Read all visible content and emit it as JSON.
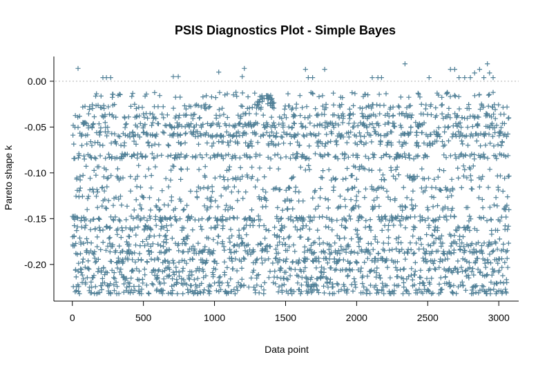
{
  "chart_data": {
    "type": "scatter",
    "title": "PSIS Diagnostics Plot - Simple Bayes",
    "xlabel": "Data point",
    "ylabel": "Pareto shape k",
    "xlim": [
      -130,
      3140
    ],
    "ylim": [
      -0.24,
      0.03
    ],
    "x_ticks": [
      0,
      500,
      1000,
      1500,
      2000,
      2500,
      3000
    ],
    "x_tick_labels": [
      "0",
      "500",
      "1000",
      "1500",
      "2000",
      "2500",
      "3000"
    ],
    "y_ticks": [
      0.0,
      -0.05,
      -0.1,
      -0.15,
      -0.2
    ],
    "y_tick_labels": [
      "0.00",
      "-0.05",
      "-0.10",
      "-0.15",
      "-0.20"
    ],
    "reference_line": {
      "y": 0.0,
      "style": "dotted",
      "color": "#bfbfbf"
    },
    "marker": "+",
    "marker_color": "#4f7f96",
    "grid": false,
    "n_points": 3072,
    "summary": "3072 points spread over x = 1 to 3072 with k roughly between -0.23 and 0.02; dense horizontal bands near -0.03, -0.05, -0.06, -0.08, -0.105, -0.12, -0.14, -0.15, -0.165, -0.185, -0.2, -0.21, -0.22 and -0.23; a few points above 0 near 0.01.",
    "highlight_points": [
      {
        "x": 40,
        "y": 0.014
      },
      {
        "x": 215,
        "y": 0.004
      },
      {
        "x": 240,
        "y": 0.004
      },
      {
        "x": 270,
        "y": 0.004
      },
      {
        "x": 710,
        "y": 0.005
      },
      {
        "x": 745,
        "y": 0.005
      },
      {
        "x": 1030,
        "y": 0.01
      },
      {
        "x": 1195,
        "y": 0.005
      },
      {
        "x": 1210,
        "y": 0.014
      },
      {
        "x": 1640,
        "y": 0.013
      },
      {
        "x": 1660,
        "y": 0.004
      },
      {
        "x": 1690,
        "y": 0.004
      },
      {
        "x": 1775,
        "y": 0.013
      },
      {
        "x": 2110,
        "y": 0.004
      },
      {
        "x": 2150,
        "y": 0.004
      },
      {
        "x": 2175,
        "y": 0.004
      },
      {
        "x": 2340,
        "y": 0.019
      },
      {
        "x": 2510,
        "y": 0.004
      },
      {
        "x": 2660,
        "y": 0.013
      },
      {
        "x": 2690,
        "y": 0.013
      },
      {
        "x": 2720,
        "y": 0.004
      },
      {
        "x": 2760,
        "y": 0.004
      },
      {
        "x": 2800,
        "y": 0.004
      },
      {
        "x": 2830,
        "y": 0.009
      },
      {
        "x": 2865,
        "y": 0.013
      },
      {
        "x": 2895,
        "y": 0.004
      },
      {
        "x": 2920,
        "y": 0.019
      },
      {
        "x": 2935,
        "y": 0.009
      },
      {
        "x": 2960,
        "y": 0.004
      }
    ],
    "bands": [
      -0.015,
      -0.028,
      -0.038,
      -0.048,
      -0.058,
      -0.068,
      -0.082,
      -0.095,
      -0.105,
      -0.118,
      -0.128,
      -0.138,
      -0.15,
      -0.16,
      -0.17,
      -0.178,
      -0.186,
      -0.196,
      -0.206,
      -0.214,
      -0.222,
      -0.23
    ],
    "band_weights": [
      2,
      4,
      5,
      6,
      6,
      4,
      6,
      2,
      3,
      3,
      2,
      3,
      6,
      4,
      3,
      4,
      6,
      6,
      5,
      4,
      5,
      5
    ]
  },
  "colors": {
    "points": "#4f7f96",
    "axes": "#000000",
    "reference": "#bfbfbf"
  }
}
